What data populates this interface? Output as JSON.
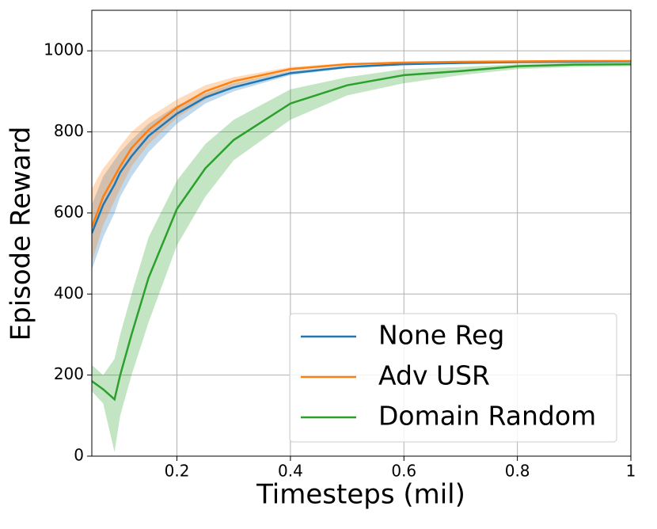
{
  "chart_data": {
    "type": "line",
    "xlabel": "Timesteps (mil)",
    "ylabel": "Episode Reward",
    "x": [
      0.05,
      0.07,
      0.09,
      0.1,
      0.12,
      0.15,
      0.2,
      0.25,
      0.3,
      0.4,
      0.5,
      0.6,
      0.7,
      0.8,
      0.9,
      1.0
    ],
    "xlim": [
      0.05,
      1.0
    ],
    "xticks": [
      0.2,
      0.4,
      0.6,
      0.8,
      1.0
    ],
    "ylim": [
      0,
      1100
    ],
    "yticks": [
      0,
      200,
      400,
      600,
      800,
      1000
    ],
    "grid": true,
    "legend": "lower right",
    "series": [
      {
        "name": "None Reg",
        "color": "#1f77b4",
        "values": [
          550,
          620,
          670,
          700,
          740,
          790,
          845,
          885,
          910,
          945,
          960,
          967,
          970,
          972,
          973,
          974
        ],
        "lower": [
          460,
          540,
          600,
          640,
          690,
          750,
          820,
          870,
          900,
          940,
          957,
          965,
          968,
          970,
          971,
          972
        ],
        "upper": [
          620,
          690,
          730,
          750,
          780,
          820,
          865,
          895,
          920,
          950,
          963,
          969,
          972,
          974,
          975,
          976
        ]
      },
      {
        "name": "Adv USR",
        "color": "#ff7f0e",
        "values": [
          565,
          640,
          690,
          715,
          760,
          805,
          860,
          900,
          925,
          955,
          967,
          971,
          973,
          974,
          975,
          975
        ],
        "lower": [
          480,
          570,
          630,
          660,
          715,
          770,
          835,
          880,
          915,
          950,
          964,
          969,
          971,
          972,
          973,
          973
        ],
        "upper": [
          660,
          710,
          745,
          765,
          800,
          835,
          880,
          915,
          935,
          960,
          970,
          973,
          975,
          976,
          977,
          977
        ]
      },
      {
        "name": "Domain Random",
        "color": "#2ca02c",
        "values": [
          185,
          165,
          140,
          200,
          300,
          440,
          610,
          710,
          780,
          870,
          915,
          940,
          950,
          962,
          966,
          967
        ],
        "lower": [
          160,
          130,
          10,
          100,
          200,
          330,
          520,
          640,
          730,
          830,
          890,
          920,
          940,
          955,
          960,
          962
        ],
        "upper": [
          225,
          200,
          240,
          300,
          400,
          540,
          680,
          770,
          830,
          905,
          935,
          955,
          960,
          967,
          970,
          972
        ]
      }
    ]
  }
}
